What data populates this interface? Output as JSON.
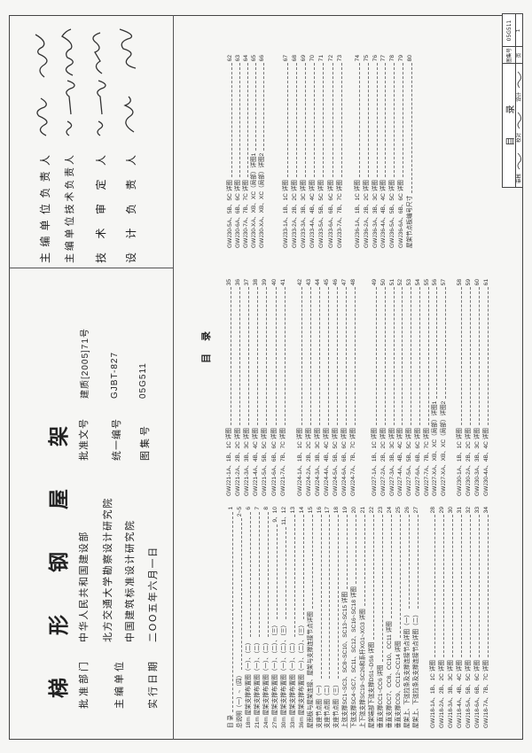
{
  "cover": {
    "title": "梯形钢屋架",
    "info_left": [
      {
        "label": "批准部门",
        "values": [
          "中华人民共和国建设部"
        ]
      },
      {
        "label": "主编单位",
        "values": [
          "北方交通大学勘察设计研究院",
          "中国建筑标准设计研究院"
        ]
      },
      {
        "label": "实行日期",
        "values": [
          "二OO五年六月一日"
        ]
      }
    ],
    "info_right": [
      {
        "label": "批准文号",
        "value": "建质[2005]71号"
      },
      {
        "label": "统一编号",
        "value": "GJBT-827"
      },
      {
        "label": "图集号",
        "value": "05G511"
      }
    ]
  },
  "signatures": [
    {
      "role": "主编单位负责人"
    },
    {
      "role": "主编单位技术负责人"
    },
    {
      "role": "技术审定人"
    },
    {
      "role": "设计负责人"
    }
  ],
  "index": {
    "heading": "目录",
    "columns": [
      [
        [
          {
            "text": "目    录",
            "page": "1"
          },
          {
            "text": "总说明（一）~（四）",
            "page": "2~5"
          },
          {
            "text": "18m 屋架支撑布置图（一）、（二）",
            "page": "6"
          },
          {
            "text": "21m 屋架支撑布置图（一）、（二）",
            "page": "7"
          },
          {
            "text": "24m 屋架支撑布置图（一）、（二）",
            "page": "8"
          },
          {
            "text": "27m 屋架支撑布置图（一）、（二）、（三）",
            "page": "9、10"
          },
          {
            "text": "30m 屋架支撑布置图（一）、（二）、（三）",
            "page": "11、12"
          },
          {
            "text": "33m 屋架支撑布置图（一）、（二）",
            "page": "13"
          },
          {
            "text": "36m 屋架支撑布置图（一）、（二）、（三）",
            "page": "14"
          },
          {
            "text": "屋面板与屋架连接、屋架与支撑连接节点详图",
            "page": "15"
          },
          {
            "text": "支座节点图（一）",
            "page": "16"
          },
          {
            "text": "支座节点图（二）",
            "page": "17"
          },
          {
            "text": "支座节点图（三）",
            "page": "18"
          },
          {
            "text": "上弦支撑SC1~SC3、SC8~SC10、SC13~SC15 详图",
            "page": "19"
          },
          {
            "text": "下弦支撑SC4~SC7、SC11、SC12、SC16~SC18 详图",
            "page": "20"
          },
          {
            "text": "上下弦支撑SC19~SC26和系杆XG1~XG3 详图",
            "page": "21"
          },
          {
            "text": "屋架端部下弦支撑DS1~DS6 详图",
            "page": "22"
          },
          {
            "text": "垂直支撑CC1~CC6 详图",
            "page": "23"
          },
          {
            "text": "垂直支撑CC7、CC8、CC10、CC11 详图",
            "page": "24"
          },
          {
            "text": "垂直支撑CC9、CC12~CC14 详图",
            "page": "25"
          },
          {
            "text": "屋架上、下弦拉条及支撑连接节点详图（一）",
            "page": "26"
          },
          {
            "text": "屋架上、下弦拉条及支撑连接节点详图（二）",
            "page": "27"
          }
        ],
        [
          {
            "text": "GWJ18-1A、1B、1C 详图",
            "page": "28"
          },
          {
            "text": "GWJ18-2A、2B、2C 详图",
            "page": "29"
          },
          {
            "text": "GWJ18-3A、3B、3C 详图",
            "page": "30"
          },
          {
            "text": "GWJ18-4A、4B、4C 详图",
            "page": "31"
          },
          {
            "text": "GWJ18-5A、5B、5C 详图",
            "page": "32"
          },
          {
            "text": "GWJ18-6A、6B、6C 详图",
            "page": "33"
          },
          {
            "text": "GWJ18-7A、7B、7C 详图",
            "page": "34"
          }
        ]
      ],
      [
        [
          {
            "text": "GWJ21-1A、1B、1C 详图",
            "page": "35"
          },
          {
            "text": "GWJ21-2A、2B、2C 详图",
            "page": "36"
          },
          {
            "text": "GWJ21-3A、3B、3C 详图",
            "page": "37"
          },
          {
            "text": "GWJ21-4A、4B、4C 详图",
            "page": "38"
          },
          {
            "text": "GWJ21-5A、5B、5C 详图",
            "page": "39"
          },
          {
            "text": "GWJ21-6A、6B、6C 详图",
            "page": "40"
          },
          {
            "text": "GWJ21-7A、7B、7C 详图",
            "page": "41"
          }
        ],
        [
          {
            "text": "GWJ24-1A、1B、1C 详图",
            "page": "42"
          },
          {
            "text": "GWJ24-2A、2B、2C 详图",
            "page": "43"
          },
          {
            "text": "GWJ24-3A、3B、3C 详图",
            "page": "44"
          },
          {
            "text": "GWJ24-4A、4B、4C 详图",
            "page": "45"
          },
          {
            "text": "GWJ24-5A、5B、5C 详图",
            "page": "46"
          },
          {
            "text": "GWJ24-6A、6B、6C 详图",
            "page": "47"
          },
          {
            "text": "GWJ24-7A、7B、7C 详图",
            "page": "48"
          }
        ],
        [
          {
            "text": "GWJ27-1A、1B、1C 详图",
            "page": "49"
          },
          {
            "text": "GWJ27-2A、2B、2C 详图",
            "page": "50"
          },
          {
            "text": "GWJ27-3A、3B、3C 详图",
            "page": "51"
          },
          {
            "text": "GWJ27-4A、4B、4C 详图",
            "page": "52"
          },
          {
            "text": "GWJ27-5A、5B、5C 详图",
            "page": "53"
          },
          {
            "text": "GWJ27-6A、6B、6C 详图",
            "page": "54"
          },
          {
            "text": "GWJ27-7A、7B、7C 详图",
            "page": "55"
          },
          {
            "text": "GWJ27-XA、XB、XC（局部）详图1",
            "page": "56"
          },
          {
            "text": "GWJ27-XA、XB、XC（局部）详图2",
            "page": "57"
          }
        ],
        [
          {
            "text": "GWJ30-1A、1B、1C 详图",
            "page": "58"
          },
          {
            "text": "GWJ30-2A、2B、2C 详图",
            "page": "59"
          },
          {
            "text": "GWJ30-3A、3B、3C 详图",
            "page": "60"
          },
          {
            "text": "GWJ30-4A、4B、4C 详图",
            "page": "61"
          }
        ]
      ],
      [
        [
          {
            "text": "GWJ30-5A、5B、5C 详图",
            "page": "62"
          },
          {
            "text": "GWJ30-6A、6B、6C 详图",
            "page": "63"
          },
          {
            "text": "GWJ30-7A、7B、7C 详图",
            "page": "64"
          },
          {
            "text": "GWJ30-XA、XB、XC（局部）详图1",
            "page": "65"
          },
          {
            "text": "GWJ30-XA、XB、XC（局部）详图2",
            "page": "66"
          }
        ],
        [
          {
            "text": "GWJ33-1A、1B、1C 详图",
            "page": "67"
          },
          {
            "text": "GWJ33-2A、2B、2C 详图",
            "page": "68"
          },
          {
            "text": "GWJ33-3A、3B、3C 详图",
            "page": "69"
          },
          {
            "text": "GWJ33-4A、4B、4C 详图",
            "page": "70"
          },
          {
            "text": "GWJ33-5A、5B、5C 详图",
            "page": "71"
          },
          {
            "text": "GWJ33-6A、6B、6C 详图",
            "page": "72"
          },
          {
            "text": "GWJ33-7A、7B、7C 详图",
            "page": "73"
          }
        ],
        [
          {
            "text": "GWJ36-1A、1B、1C 详图",
            "page": "74"
          },
          {
            "text": "GWJ36-2A、2B、2C 详图",
            "page": "75"
          },
          {
            "text": "GWJ36-3A、3B、3C 详图",
            "page": "76"
          },
          {
            "text": "GWJ36-4A、4B、4C 详图",
            "page": "77"
          },
          {
            "text": "GWJ36-5A、5B、5C 详图",
            "page": "78"
          },
          {
            "text": "GWJ36-6A、6B、6C 详图",
            "page": "79"
          },
          {
            "text": "屋架节点板编号尺寸",
            "page": "80"
          }
        ]
      ]
    ]
  },
  "title_block": {
    "title": "目录",
    "atlas_no_label": "图集号",
    "atlas_no": "05G511",
    "page_label": "页",
    "page": "1",
    "review_label": "审核",
    "check_label": "校对",
    "design_label": "设计"
  }
}
